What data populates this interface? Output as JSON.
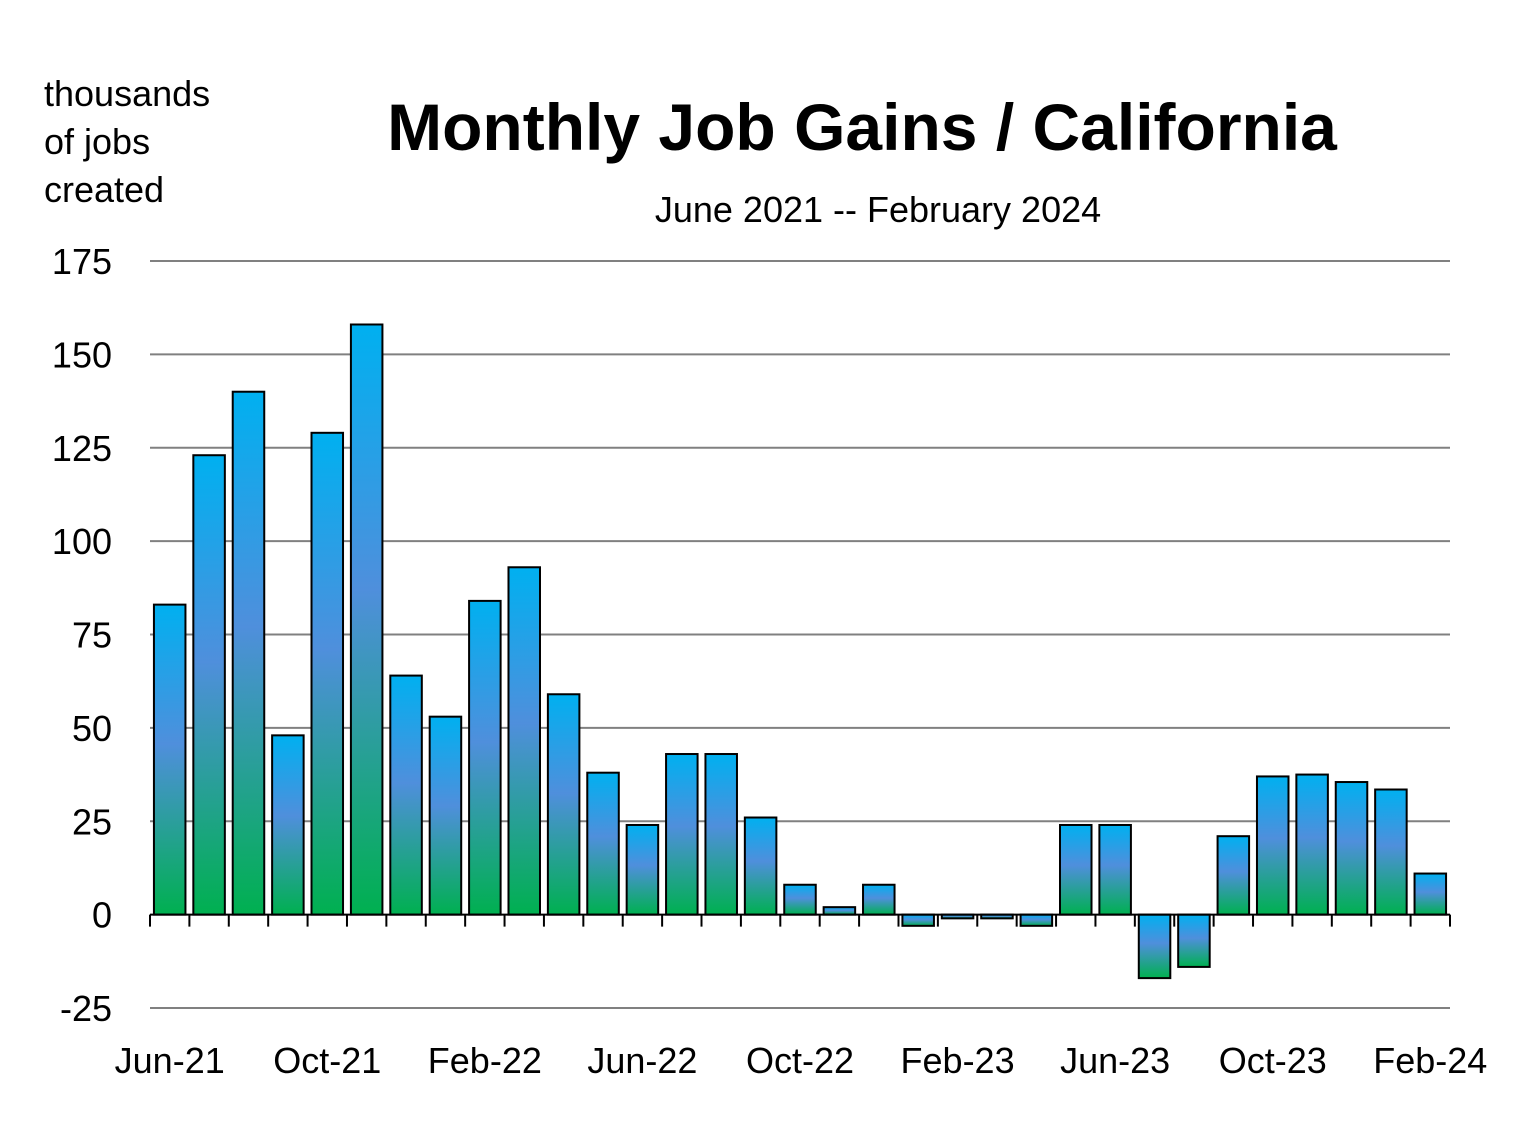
{
  "chart_data": {
    "type": "bar",
    "title": "Monthly Job Gains / California",
    "subtitle": "June 2021 -- February 2024",
    "ylabel_lines": [
      "thousands",
      "of jobs",
      "created"
    ],
    "xlabel": "",
    "ylim": [
      -25,
      175
    ],
    "yticks": [
      175,
      150,
      125,
      100,
      75,
      50,
      25,
      0,
      -25
    ],
    "grid": true,
    "legend": "none",
    "colors": {
      "top": "#00b0f0",
      "mid": "#4f8fdc",
      "bottom": "#00b050",
      "grid": "#808080",
      "outline": "#000000"
    },
    "categories": [
      "Jun-21",
      "Jul-21",
      "Aug-21",
      "Sep-21",
      "Oct-21",
      "Nov-21",
      "Dec-21",
      "Jan-22",
      "Feb-22",
      "Mar-22",
      "Apr-22",
      "May-22",
      "Jun-22",
      "Jul-22",
      "Aug-22",
      "Sep-22",
      "Oct-22",
      "Nov-22",
      "Dec-22",
      "Jan-23",
      "Feb-23",
      "Mar-23",
      "Apr-23",
      "May-23",
      "Jun-23",
      "Jul-23",
      "Aug-23",
      "Sep-23",
      "Oct-23",
      "Nov-23",
      "Dec-23",
      "Jan-24",
      "Feb-24"
    ],
    "xtick_labels": [
      "Jun-21",
      "Oct-21",
      "Feb-22",
      "Jun-22",
      "Oct-22",
      "Feb-23",
      "Jun-23",
      "Oct-23",
      "Feb-24"
    ],
    "values": [
      83,
      123,
      140,
      48,
      129,
      158,
      64,
      53,
      84,
      93,
      59,
      38,
      24,
      43,
      43,
      26,
      8,
      2,
      8,
      -3,
      -1,
      -1,
      -3,
      24,
      24,
      -17,
      -14,
      21,
      37,
      37.5,
      35.5,
      33.5,
      11
    ]
  }
}
